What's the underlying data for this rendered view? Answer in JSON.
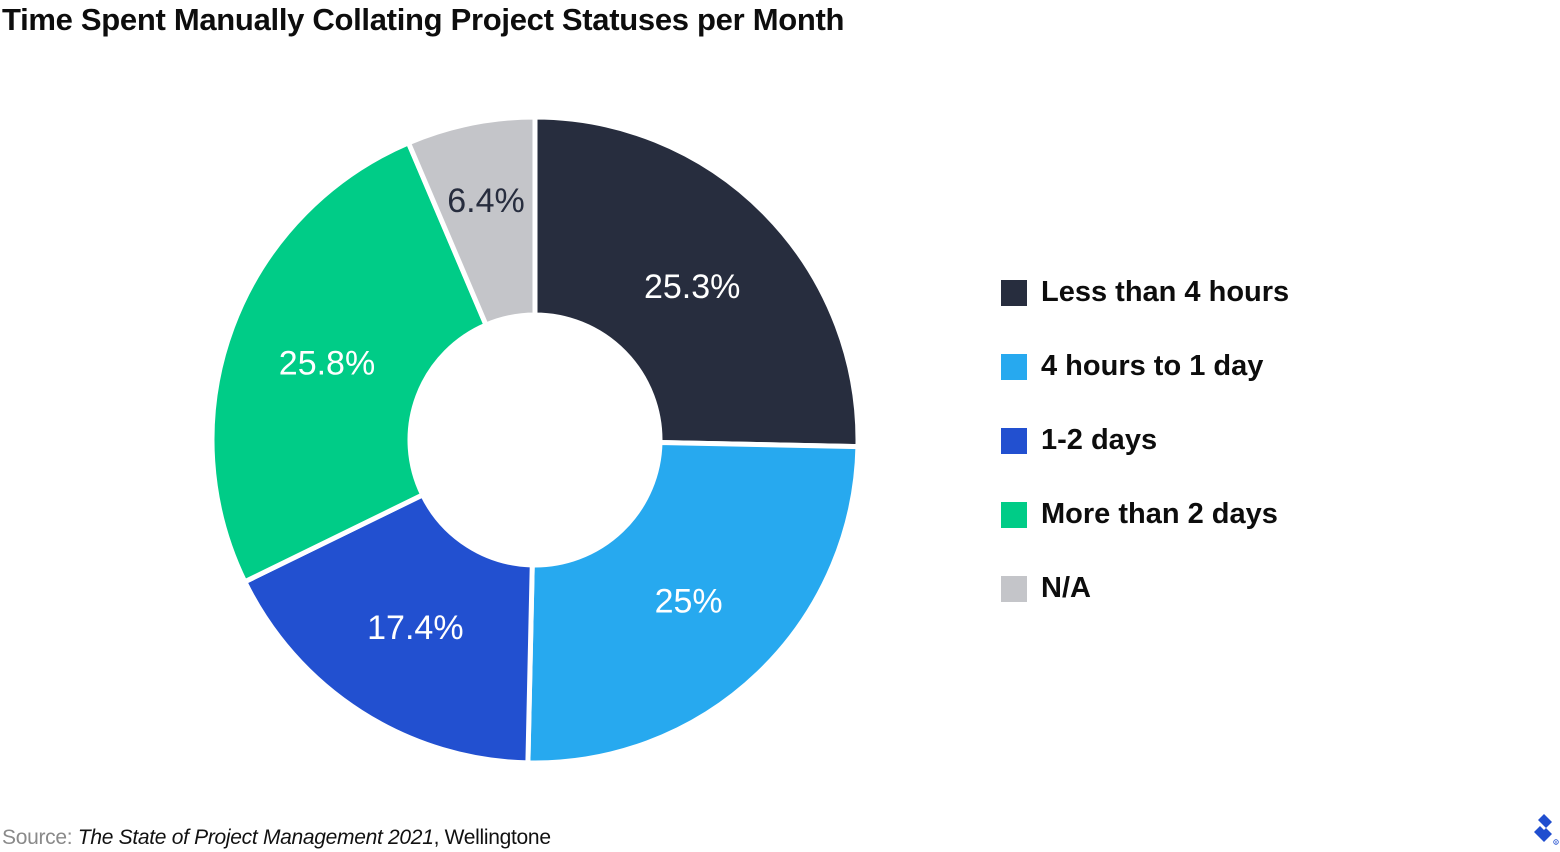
{
  "header": {
    "title": "Time Spent Manually Collating Project Statuses per Month"
  },
  "legend": {
    "items": [
      {
        "label": "Less than 4 hours",
        "color": "#272d3e"
      },
      {
        "label": "4 hours to 1 day",
        "color": "#27a9ef"
      },
      {
        "label": "1-2 days",
        "color": "#2250d0"
      },
      {
        "label": "More than 2 days",
        "color": "#00cc87"
      },
      {
        "label": "N/A",
        "color": "#c4c5c9"
      }
    ]
  },
  "slices": [
    {
      "label": "25.3%",
      "color": "#272d3e",
      "text_color": "#ffffff"
    },
    {
      "label": "25%",
      "color": "#27a9ef",
      "text_color": "#ffffff"
    },
    {
      "label": "17.4%",
      "color": "#2250d0",
      "text_color": "#ffffff"
    },
    {
      "label": "25.8%",
      "color": "#00cc87",
      "text_color": "#ffffff"
    },
    {
      "label": "6.4%",
      "color": "#c4c5c9",
      "text_color": "#272d3e"
    }
  ],
  "footer": {
    "source_prefix": "Source: ",
    "source_title": "The State of Project Management 2021",
    "source_suffix": ", Wellingtone",
    "logo": "toptal-logo-icon",
    "logo_color": "#204ecf"
  },
  "chart_data": {
    "type": "pie",
    "variant": "donut",
    "title": "Time Spent Manually Collating Project Statuses per Month",
    "categories": [
      "Less than 4 hours",
      "4 hours to 1 day",
      "1-2 days",
      "More than 2 days",
      "N/A"
    ],
    "values": [
      25.3,
      25.0,
      17.4,
      25.8,
      6.4
    ],
    "unit": "%",
    "colors": [
      "#272d3e",
      "#27a9ef",
      "#2250d0",
      "#00cc87",
      "#c4c5c9"
    ],
    "start_angle": "12 o'clock, clockwise",
    "legend_position": "right",
    "source": "Source: The State of Project Management 2021, Wellingtone"
  }
}
